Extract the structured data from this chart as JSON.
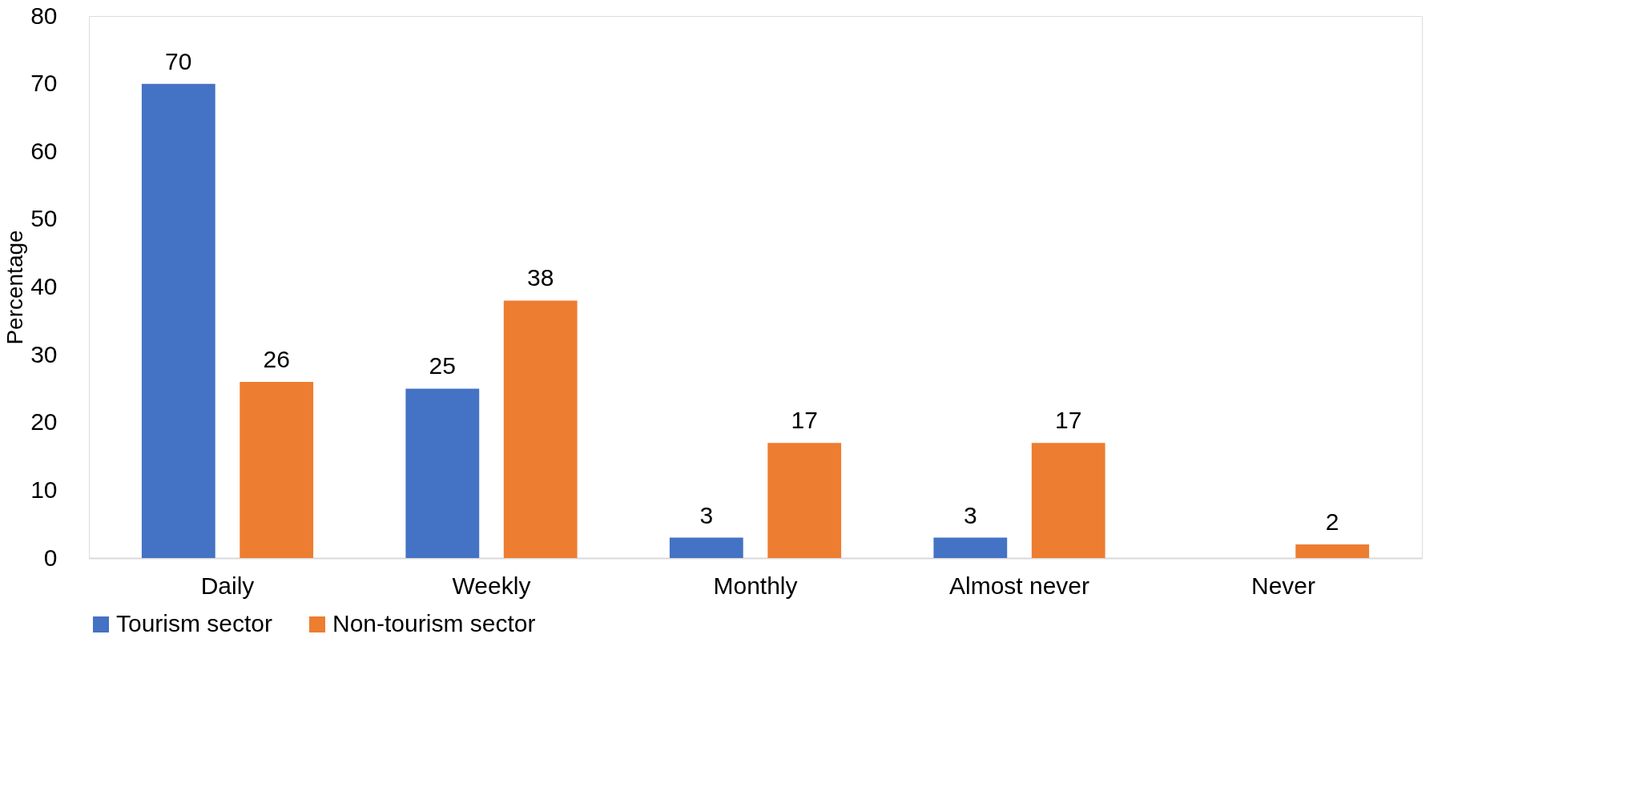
{
  "chart_data": {
    "type": "bar",
    "ylabel": "Percentage",
    "categories": [
      "Daily",
      "Weekly",
      "Monthly",
      "Almost never",
      "Never"
    ],
    "series": [
      {
        "name": "Tourism sector",
        "color": "#4472c4",
        "values": [
          70,
          25,
          3,
          3,
          null
        ]
      },
      {
        "name": "Non-tourism sector",
        "color": "#ed7d31",
        "values": [
          26,
          38,
          17,
          17,
          2
        ]
      }
    ],
    "ylim": [
      0,
      80
    ],
    "yticks": [
      0,
      10,
      20,
      30,
      40,
      50,
      60,
      70,
      80
    ],
    "grid": false,
    "legend": "bottom",
    "data_labels": true
  }
}
